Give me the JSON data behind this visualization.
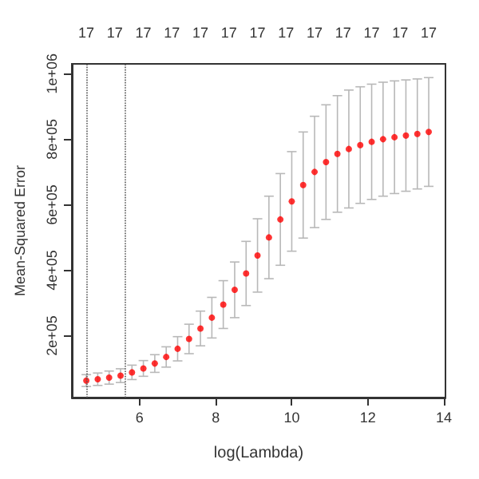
{
  "chart_data": {
    "type": "scatter",
    "xlabel": "log(Lambda)",
    "ylabel": "Mean-Squared Error",
    "marker": "circle",
    "xlim": [
      4.22,
      14.04
    ],
    "xticks": [
      6,
      8,
      10,
      12,
      14
    ],
    "ylim": [
      11000,
      1030000
    ],
    "yticks": [
      {
        "value": 200000,
        "label": "2e+05"
      },
      {
        "value": 400000,
        "label": "4e+05"
      },
      {
        "value": 600000,
        "label": "6e+05"
      },
      {
        "value": 800000,
        "label": "8e+05"
      },
      {
        "value": 1000000,
        "label": "1e+06"
      }
    ],
    "annotations": [
      "17",
      "17",
      "17",
      "17",
      "17",
      "17",
      "17",
      "17",
      "17",
      "17",
      "17",
      "17",
      "17"
    ],
    "x": [
      4.6,
      4.9,
      5.2,
      5.5,
      5.8,
      6.1,
      6.4,
      6.7,
      7.0,
      7.3,
      7.6,
      7.9,
      8.2,
      8.5,
      8.8,
      9.1,
      9.4,
      9.7,
      10.0,
      10.3,
      10.6,
      10.9,
      11.2,
      11.5,
      11.8,
      12.1,
      12.4,
      12.7,
      13.0,
      13.3,
      13.6
    ],
    "series": [
      {
        "color": "#ff0000",
        "values": [
          63000,
          67000,
          72000,
          78000,
          88000,
          100000,
          115000,
          135000,
          160000,
          190000,
          222000,
          255000,
          295000,
          340000,
          390000,
          445000,
          500000,
          555000,
          610000,
          660000,
          700000,
          730000,
          755000,
          770000,
          782000,
          792000,
          800000,
          806000,
          811000,
          816000,
          822000
        ],
        "errors": [
          18000,
          19000,
          20000,
          21000,
          22000,
          24000,
          27000,
          31000,
          37000,
          45000,
          53000,
          62000,
          73000,
          85000,
          98000,
          112000,
          126000,
          140000,
          152000,
          162000,
          170000,
          175000,
          178000,
          180000,
          178000,
          176000,
          174000,
          172000,
          170000,
          168000,
          166000
        ]
      }
    ],
    "ref_lines": [
      {
        "axis": "x",
        "value": 4.6,
        "color": "#555555",
        "line_style": "dotted"
      },
      {
        "axis": "x",
        "value": 5.62,
        "color": "#555555",
        "line_style": "dotted"
      }
    ]
  }
}
